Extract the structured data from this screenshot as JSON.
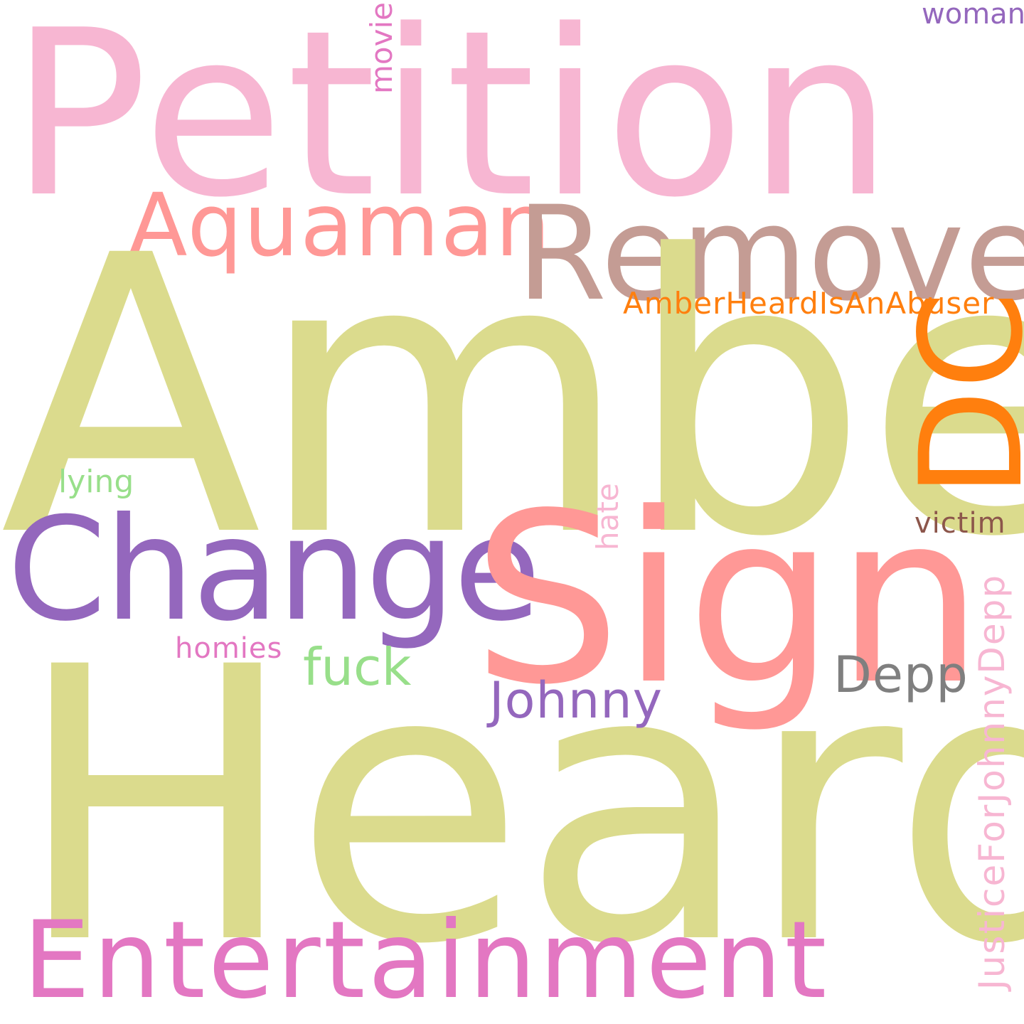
{
  "words": {
    "amber": {
      "text": "Amber",
      "color": "#dbdb8d"
    },
    "heard": {
      "text": "Heard",
      "color": "#dbdb8d"
    },
    "petition": {
      "text": "Petition",
      "color": "#f7b6d2"
    },
    "remove": {
      "text": "Remove",
      "color": "#c49c94"
    },
    "aquaman": {
      "text": "Aquaman",
      "color": "#ff9896"
    },
    "sign": {
      "text": "Sign",
      "color": "#ff9896"
    },
    "change": {
      "text": "Change",
      "color": "#9467bd"
    },
    "entertainment": {
      "text": "Entertainment",
      "color": "#e377c2"
    },
    "dc": {
      "text": "DC",
      "color": "#ff7f0e"
    },
    "amberheardisanabuser": {
      "text": "AmberHeardIsAnAbuser",
      "color": "#ff7f0e"
    },
    "lying": {
      "text": "lying",
      "color": "#98df8a"
    },
    "victim": {
      "text": "victim",
      "color": "#8c564b"
    },
    "homies": {
      "text": "homies",
      "color": "#e377c2"
    },
    "fuck": {
      "text": "fuck",
      "color": "#98df8a"
    },
    "johnny": {
      "text": "Johnny",
      "color": "#9467bd"
    },
    "depp": {
      "text": "Depp",
      "color": "#7f7f7f"
    },
    "woman": {
      "text": "woman",
      "color": "#9467bd"
    },
    "movie": {
      "text": "movie",
      "color": "#e377c2"
    },
    "hate": {
      "text": "hate",
      "color": "#f7b6d2"
    },
    "justiceforjohnnydepp": {
      "text": "JusticeForJohnnyDepp",
      "color": "#f7b6d2"
    }
  }
}
